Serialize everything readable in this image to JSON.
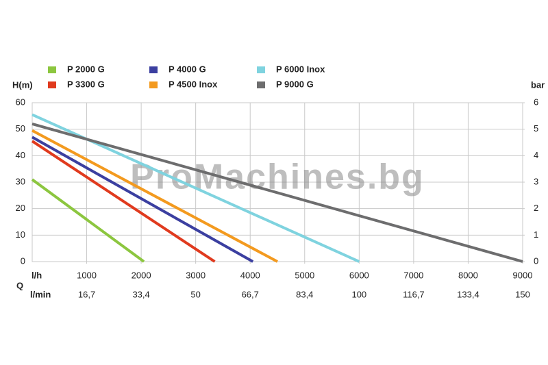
{
  "chart_data": {
    "type": "line",
    "watermark": "ProMachines.bg",
    "y_label": "H(m)",
    "y2_label": "bar",
    "x_label": "l/h",
    "x2_label": "l/min",
    "x_group_label": "Q",
    "xlim": [
      0,
      9000
    ],
    "xticks": [
      1000,
      2000,
      3000,
      4000,
      5000,
      6000,
      7000,
      8000,
      9000
    ],
    "x2ticks": [
      {
        "value": 1000,
        "label": "16,7"
      },
      {
        "value": 2000,
        "label": "33,4"
      },
      {
        "value": 3000,
        "label": "50"
      },
      {
        "value": 4000,
        "label": "66,7"
      },
      {
        "value": 5000,
        "label": "83,4"
      },
      {
        "value": 6000,
        "label": "100"
      },
      {
        "value": 7000,
        "label": "116,7"
      },
      {
        "value": 8000,
        "label": "133,4"
      },
      {
        "value": 9000,
        "label": "150"
      }
    ],
    "ylim": [
      0,
      60
    ],
    "yticks": [
      0,
      10,
      20,
      30,
      40,
      50,
      60
    ],
    "y2lim": [
      0,
      6
    ],
    "y2ticks": [
      0,
      1,
      2,
      3,
      4,
      5,
      6
    ],
    "grid": true,
    "series": [
      {
        "name": "P 2000 G",
        "color": "#8cc63f",
        "x": [
          0,
          2050
        ],
        "values": [
          31,
          0
        ]
      },
      {
        "name": "P 3300 G",
        "color": "#e03a1e",
        "x": [
          0,
          3350
        ],
        "values": [
          45.5,
          0
        ]
      },
      {
        "name": "P 4000 G",
        "color": "#3b3fa0",
        "x": [
          0,
          4050
        ],
        "values": [
          47,
          0
        ]
      },
      {
        "name": "P 4500 Inox",
        "color": "#f39a1f",
        "x": [
          0,
          4500
        ],
        "values": [
          49.5,
          0
        ]
      },
      {
        "name": "P 6000 Inox",
        "color": "#7fd3df",
        "x": [
          0,
          6000
        ],
        "values": [
          55.5,
          0
        ]
      },
      {
        "name": "P 9000 G",
        "color": "#6d6d6e",
        "x": [
          0,
          9000
        ],
        "values": [
          52,
          0
        ]
      }
    ]
  }
}
